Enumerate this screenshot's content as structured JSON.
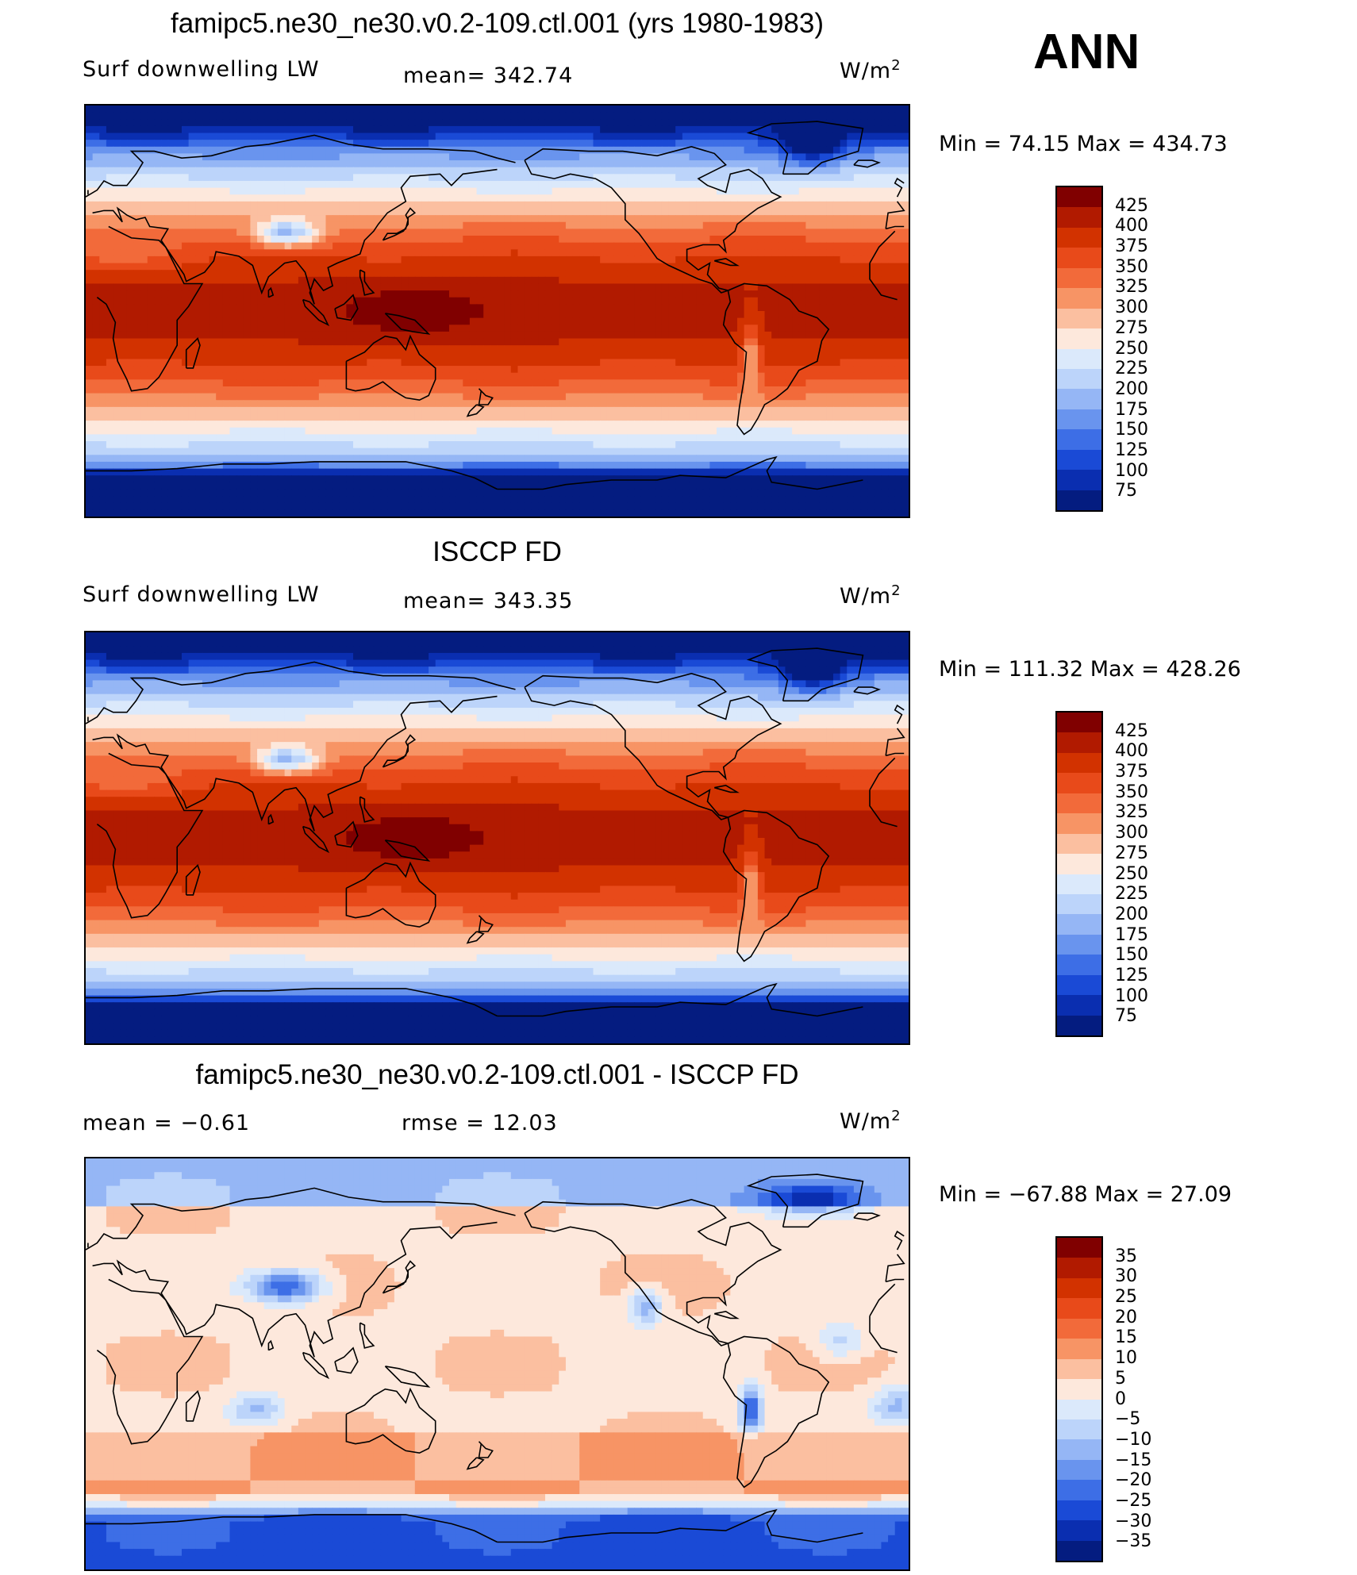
{
  "season": "ANN",
  "panels": [
    {
      "title": "famipc5.ne30_ne30.v0.2-109.ctl.001 (yrs 1980-1983)",
      "left_label": "Surf downwelling LW",
      "center_label": "mean=  342.74",
      "units": "W/m",
      "units_sup": "2",
      "min_max": "Min =   74.15  Max =  434.73",
      "field": "model"
    },
    {
      "title": "ISCCP FD",
      "left_label": "Surf downwelling LW",
      "center_label": "mean=  343.35",
      "units": "W/m",
      "units_sup": "2",
      "min_max": "Min =  111.32  Max =  428.26",
      "field": "obs"
    },
    {
      "title": "famipc5.ne30_ne30.v0.2-109.ctl.001 - ISCCP FD",
      "left_label": "mean =    −0.61",
      "center_label": "rmse =    12.03",
      "units": "W/m",
      "units_sup": "2",
      "min_max": "Min = −67.88  Max =   27.09",
      "field": "diff"
    }
  ],
  "colorbars": {
    "abs": {
      "labels": [
        "425",
        "400",
        "375",
        "350",
        "325",
        "300",
        "275",
        "250",
        "225",
        "200",
        "175",
        "150",
        "125",
        "100",
        "75"
      ],
      "colors": [
        "#800000",
        "#b11a00",
        "#d23200",
        "#e84a1a",
        "#f26a3a",
        "#f79465",
        "#fbbfa0",
        "#fde8dc",
        "#dbe9fb",
        "#bcd4fa",
        "#95b6f5",
        "#6994ee",
        "#3d6ee6",
        "#1a4ad6",
        "#0a2eb0",
        "#041c80"
      ]
    },
    "diff": {
      "labels": [
        "35",
        "30",
        "25",
        "20",
        "15",
        "10",
        "5",
        "0",
        "−5",
        "−10",
        "−15",
        "−20",
        "−25",
        "−30",
        "−35"
      ],
      "colors": [
        "#800000",
        "#b11a00",
        "#d23200",
        "#e84a1a",
        "#f26a3a",
        "#f79465",
        "#fbbfa0",
        "#fde8dc",
        "#dbe9fb",
        "#bcd4fa",
        "#95b6f5",
        "#6994ee",
        "#3d6ee6",
        "#1a4ad6",
        "#0a2eb0",
        "#041c80"
      ]
    }
  }
}
